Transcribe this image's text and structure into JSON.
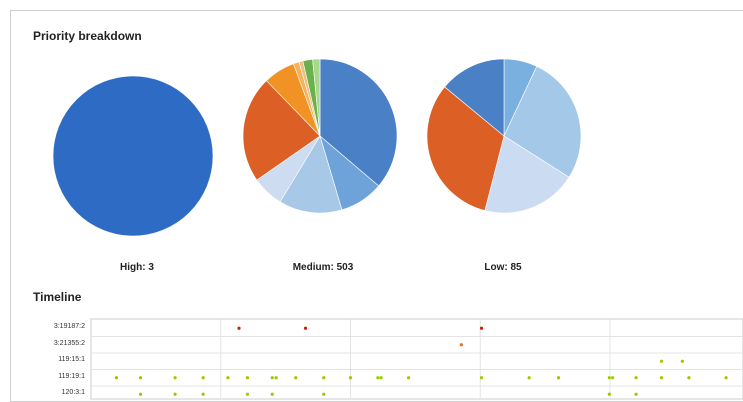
{
  "breakdown": {
    "title": "Priority breakdown",
    "colors": {
      "blue": "#3366cc",
      "orange": "#dc5f26",
      "light_orange": "#f0a030",
      "green": "#6ab04c",
      "light_green": "#a8d88c"
    }
  },
  "timeline": {
    "title": "Timeline"
  },
  "chart_data": [
    {
      "type": "pie",
      "label": "High: 3",
      "slices": [
        {
          "value": 100,
          "color": "#2e6bc4"
        }
      ]
    },
    {
      "type": "pie",
      "label": "Medium: 503",
      "slices": [
        {
          "value": 35.5,
          "color": "#4a80c6"
        },
        {
          "value": 9,
          "color": "#6ea3d9"
        },
        {
          "value": 13,
          "color": "#a8c8e8"
        },
        {
          "value": 6.5,
          "color": "#cddcf0"
        },
        {
          "value": 22,
          "color": "#dc5f26"
        },
        {
          "value": 6.5,
          "color": "#f09224"
        },
        {
          "value": 1.2,
          "color": "#f5b25a"
        },
        {
          "value": 0.8,
          "color": "#e8c080"
        },
        {
          "value": 2,
          "color": "#6ab04c"
        },
        {
          "value": 1.5,
          "color": "#a8d88c"
        }
      ]
    },
    {
      "type": "pie",
      "label": "Low: 85",
      "slices": [
        {
          "value": 7,
          "color": "#7ab0e0"
        },
        {
          "value": 27,
          "color": "#a4c8e8"
        },
        {
          "value": 20,
          "color": "#cbdcf2"
        },
        {
          "value": 32,
          "color": "#dc5f26"
        },
        {
          "value": 14,
          "color": "#4a80c6"
        }
      ]
    },
    {
      "type": "scatter",
      "rows": [
        "3:19187:2",
        "3:21355:2",
        "119:15:1",
        "119:19:1",
        "120:3:1"
      ],
      "points": [
        {
          "row": 0,
          "t": 0.227,
          "color": "#cc2200"
        },
        {
          "row": 0,
          "t": 0.329,
          "color": "#cc2200"
        },
        {
          "row": 0,
          "t": 0.599,
          "color": "#cc2200"
        },
        {
          "row": 1,
          "t": 0.568,
          "color": "#e87020"
        },
        {
          "row": 2,
          "t": 0.875,
          "color": "#99cc00"
        },
        {
          "row": 2,
          "t": 0.907,
          "color": "#99cc00"
        },
        {
          "row": 3,
          "t": 0.039,
          "color": "#99cc00"
        },
        {
          "row": 3,
          "t": 0.076,
          "color": "#99cc00"
        },
        {
          "row": 3,
          "t": 0.129,
          "color": "#99cc00"
        },
        {
          "row": 3,
          "t": 0.172,
          "color": "#99cc00"
        },
        {
          "row": 3,
          "t": 0.21,
          "color": "#99cc00"
        },
        {
          "row": 3,
          "t": 0.24,
          "color": "#99cc00"
        },
        {
          "row": 3,
          "t": 0.278,
          "color": "#99cc00"
        },
        {
          "row": 3,
          "t": 0.284,
          "color": "#99cc00"
        },
        {
          "row": 3,
          "t": 0.314,
          "color": "#99cc00"
        },
        {
          "row": 3,
          "t": 0.357,
          "color": "#99cc00"
        },
        {
          "row": 3,
          "t": 0.398,
          "color": "#99cc00"
        },
        {
          "row": 3,
          "t": 0.44,
          "color": "#99cc00"
        },
        {
          "row": 3,
          "t": 0.445,
          "color": "#99cc00"
        },
        {
          "row": 3,
          "t": 0.487,
          "color": "#99cc00"
        },
        {
          "row": 3,
          "t": 0.599,
          "color": "#99cc00"
        },
        {
          "row": 3,
          "t": 0.672,
          "color": "#99cc00"
        },
        {
          "row": 3,
          "t": 0.717,
          "color": "#99cc00"
        },
        {
          "row": 3,
          "t": 0.795,
          "color": "#99cc00"
        },
        {
          "row": 3,
          "t": 0.8,
          "color": "#99cc00"
        },
        {
          "row": 3,
          "t": 0.836,
          "color": "#99cc00"
        },
        {
          "row": 3,
          "t": 0.875,
          "color": "#99cc00"
        },
        {
          "row": 3,
          "t": 0.917,
          "color": "#99cc00"
        },
        {
          "row": 3,
          "t": 0.974,
          "color": "#99cc00"
        },
        {
          "row": 4,
          "t": 0.076,
          "color": "#99cc00"
        },
        {
          "row": 4,
          "t": 0.129,
          "color": "#99cc00"
        },
        {
          "row": 4,
          "t": 0.172,
          "color": "#99cc00"
        },
        {
          "row": 4,
          "t": 0.24,
          "color": "#99cc00"
        },
        {
          "row": 4,
          "t": 0.278,
          "color": "#99cc00"
        },
        {
          "row": 4,
          "t": 0.357,
          "color": "#99cc00"
        },
        {
          "row": 4,
          "t": 0.795,
          "color": "#99cc00"
        },
        {
          "row": 4,
          "t": 0.836,
          "color": "#99cc00"
        }
      ]
    }
  ]
}
